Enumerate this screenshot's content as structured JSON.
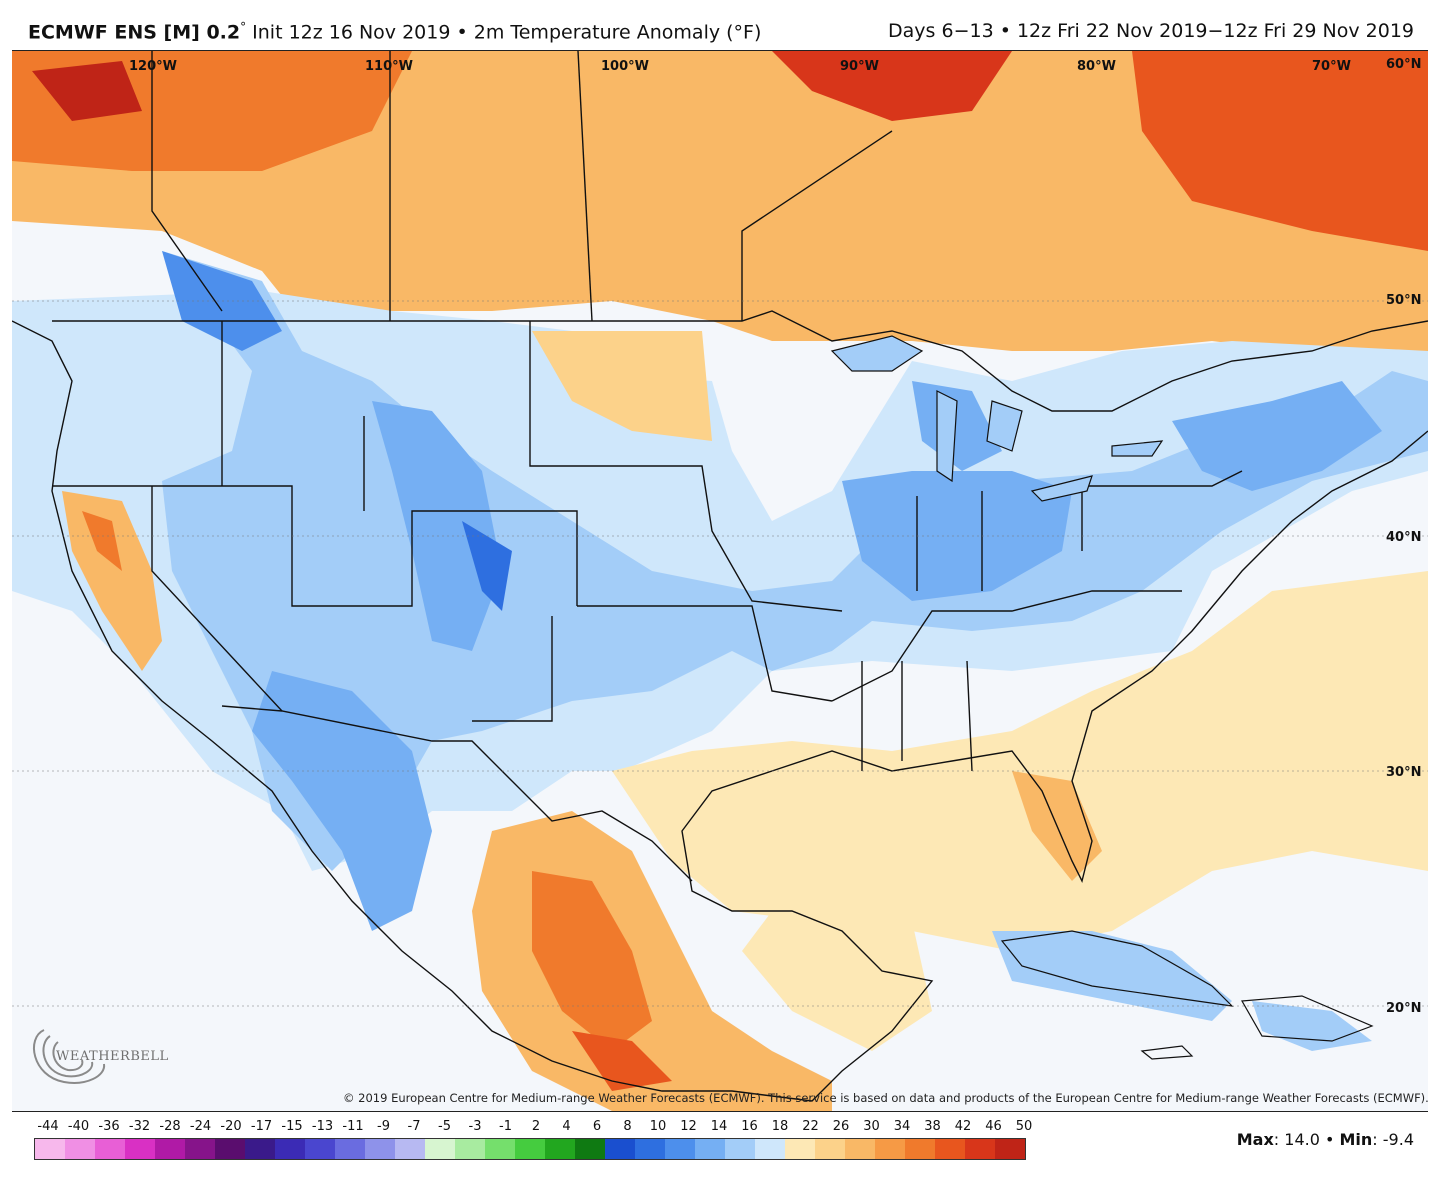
{
  "header": {
    "model_bold": "ECMWF ENS [M] 0.2",
    "degree_sup": "°",
    "init_text": " Init 12z 16 Nov 2019 • 2m Temperature Anomaly (°F)",
    "valid_text": "Days 6−13 • 12z Fri 22 Nov 2019−12z Fri 29 Nov 2019"
  },
  "map": {
    "longitude_labels": [
      "120°W",
      "110°W",
      "100°W",
      "90°W",
      "80°W",
      "70°W"
    ],
    "latitude_labels": [
      "60°N",
      "50°N",
      "40°N",
      "30°N",
      "20°N"
    ],
    "credit": "© 2019 European Centre for Medium-range Weather Forecasts (ECMWF). This service is based on data and products of the European Centre for Medium-range Weather Forecasts (ECMWF).",
    "logo_text": "WEATHERBELL"
  },
  "colorbar": {
    "tick_labels": [
      "-44",
      "-40",
      "-36",
      "-32",
      "-28",
      "-24",
      "-20",
      "-17",
      "-15",
      "-13",
      "-11",
      "-9",
      "-7",
      "-5",
      "-3",
      "-1",
      "2",
      "4",
      "6",
      "8",
      "10",
      "12",
      "14",
      "16",
      "18",
      "22",
      "26",
      "30",
      "34",
      "38",
      "42",
      "46",
      "50"
    ],
    "colors": [
      "#f7b8ec",
      "#f08fe4",
      "#e85fd6",
      "#d930c4",
      "#b01aa6",
      "#86148a",
      "#5a0d6e",
      "#3a1a8a",
      "#3b2bb5",
      "#4a46cf",
      "#6a6ce0",
      "#8e92ea",
      "#b7b9f2",
      "#d7f5d0",
      "#a8eba0",
      "#75df6c",
      "#45cc3f",
      "#22a71f",
      "#0f7a12",
      "#1a4fcf",
      "#2e6fe0",
      "#4d8fec",
      "#75aff3",
      "#a3cdf8",
      "#cfe7fb",
      "#fde8b5",
      "#fcd28a",
      "#f9b866",
      "#f69a45",
      "#f07a2c",
      "#e8561e",
      "#d8361a",
      "#bf2417"
    ]
  },
  "stats": {
    "max_label": "Max",
    "max_value": ": 14.0 • ",
    "min_label": "Min",
    "min_value": ": -9.4"
  }
}
